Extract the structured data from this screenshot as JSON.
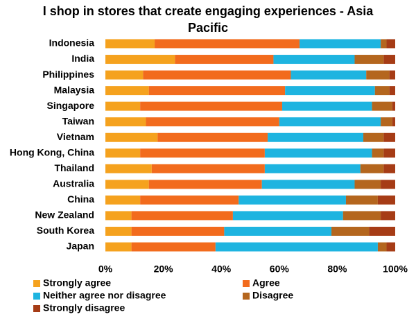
{
  "chart_data": {
    "type": "stacked-barh",
    "title": "I shop in stores that create engaging experiences - Asia Pacific",
    "categories": [
      "Indonesia",
      "India",
      "Philippines",
      "Malaysia",
      "Singapore",
      "Taiwan",
      "Vietnam",
      "Hong Kong, China",
      "Thailand",
      "Australia",
      "China",
      "New Zealand",
      "South Korea",
      "Japan"
    ],
    "series": [
      {
        "name": "Strongly agree",
        "color": "#f5a21e",
        "values": [
          17,
          24,
          13,
          15,
          12,
          14,
          18,
          12,
          16,
          15,
          12,
          9,
          9,
          9
        ]
      },
      {
        "name": "Agree",
        "color": "#f26b1d",
        "values": [
          50,
          34,
          51,
          47,
          49,
          46,
          38,
          43,
          39,
          39,
          34,
          35,
          32,
          29
        ]
      },
      {
        "name": "Neither agree nor disagree",
        "color": "#1eb4e0",
        "values": [
          28,
          28,
          26,
          31,
          31,
          35,
          33,
          37,
          33,
          32,
          37,
          38,
          37,
          56
        ]
      },
      {
        "name": "Disagree",
        "color": "#b4661e",
        "values": [
          2,
          10,
          8,
          5,
          7,
          4,
          7,
          4,
          8,
          9,
          11,
          13,
          13,
          3
        ]
      },
      {
        "name": "Strongly disagree",
        "color": "#a63c16",
        "values": [
          3,
          4,
          2,
          2,
          1,
          1,
          4,
          4,
          4,
          5,
          6,
          5,
          9,
          3
        ]
      }
    ],
    "xlim": [
      0,
      100
    ],
    "xticks": [
      {
        "value": 0,
        "label": "0%"
      },
      {
        "value": 20,
        "label": "20%"
      },
      {
        "value": 40,
        "label": "40%"
      },
      {
        "value": 60,
        "label": "60%"
      },
      {
        "value": 80,
        "label": "80%"
      },
      {
        "value": 100,
        "label": "100%"
      }
    ],
    "grid": false
  }
}
